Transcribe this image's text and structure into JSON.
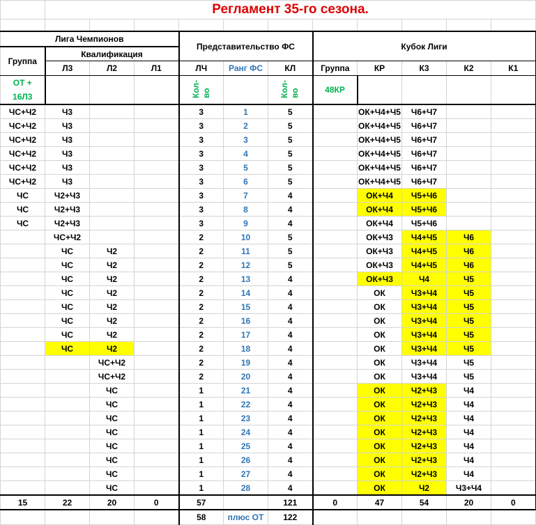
{
  "title": "Регламент 35-го сезона.",
  "headers": {
    "champions_league": "Лига Чемпионов",
    "group": "Группа",
    "qualification": "Квалификация",
    "l3": "Л3",
    "l2": "Л2",
    "l1": "Л1",
    "fs_representation": "Представительство ФС",
    "lch": "ЛЧ",
    "fs_rank": "Ранг ФС",
    "kl": "КЛ",
    "league_cup": "Кубок Лиги",
    "cup_group": "Группа",
    "kr": "КР",
    "k3": "К3",
    "k2": "К2",
    "k1": "К1",
    "group_note_1": "ОТ +",
    "group_note_2": "16Л3",
    "count_1": "Кол-",
    "count_2": "во",
    "cup_group_note": "48КР"
  },
  "colors": {
    "highlight": "#ffff00",
    "title": "#e00000",
    "rank": "#2e75b6",
    "note": "#00b050"
  },
  "rows": [
    {
      "cells": [
        "ЧС+Ч2",
        "Ч3",
        "",
        "",
        "3",
        "1",
        "5",
        "",
        "ОК+Ч4+Ч5",
        "Ч6+Ч7",
        "",
        ""
      ],
      "hl": []
    },
    {
      "cells": [
        "ЧС+Ч2",
        "Ч3",
        "",
        "",
        "3",
        "2",
        "5",
        "",
        "ОК+Ч4+Ч5",
        "Ч6+Ч7",
        "",
        ""
      ],
      "hl": []
    },
    {
      "cells": [
        "ЧС+Ч2",
        "Ч3",
        "",
        "",
        "3",
        "3",
        "5",
        "",
        "ОК+Ч4+Ч5",
        "Ч6+Ч7",
        "",
        ""
      ],
      "hl": []
    },
    {
      "cells": [
        "ЧС+Ч2",
        "Ч3",
        "",
        "",
        "3",
        "4",
        "5",
        "",
        "ОК+Ч4+Ч5",
        "Ч6+Ч7",
        "",
        ""
      ],
      "hl": []
    },
    {
      "cells": [
        "ЧС+Ч2",
        "Ч3",
        "",
        "",
        "3",
        "5",
        "5",
        "",
        "ОК+Ч4+Ч5",
        "Ч6+Ч7",
        "",
        ""
      ],
      "hl": []
    },
    {
      "cells": [
        "ЧС+Ч2",
        "Ч3",
        "",
        "",
        "3",
        "6",
        "5",
        "",
        "ОК+Ч4+Ч5",
        "Ч6+Ч7",
        "",
        ""
      ],
      "hl": []
    },
    {
      "cells": [
        "ЧС",
        "Ч2+Ч3",
        "",
        "",
        "3",
        "7",
        "4",
        "",
        "ОК+Ч4",
        "Ч5+Ч6",
        "",
        ""
      ],
      "hl": [
        8,
        9
      ]
    },
    {
      "cells": [
        "ЧС",
        "Ч2+Ч3",
        "",
        "",
        "3",
        "8",
        "4",
        "",
        "ОК+Ч4",
        "Ч5+Ч6",
        "",
        ""
      ],
      "hl": [
        8,
        9
      ]
    },
    {
      "cells": [
        "ЧС",
        "Ч2+Ч3",
        "",
        "",
        "3",
        "9",
        "4",
        "",
        "ОК+Ч4",
        "Ч5+Ч6",
        "",
        ""
      ],
      "hl": []
    },
    {
      "cells": [
        "",
        "ЧС+Ч2",
        "",
        "",
        "2",
        "10",
        "5",
        "",
        "ОК+Ч3",
        "Ч4+Ч5",
        "Ч6",
        ""
      ],
      "hl": [
        9,
        10
      ]
    },
    {
      "cells": [
        "",
        "ЧС",
        "Ч2",
        "",
        "2",
        "11",
        "5",
        "",
        "ОК+Ч3",
        "Ч4+Ч5",
        "Ч6",
        ""
      ],
      "hl": [
        9,
        10
      ]
    },
    {
      "cells": [
        "",
        "ЧС",
        "Ч2",
        "",
        "2",
        "12",
        "5",
        "",
        "ОК+Ч3",
        "Ч4+Ч5",
        "Ч6",
        ""
      ],
      "hl": [
        9,
        10
      ]
    },
    {
      "cells": [
        "",
        "ЧС",
        "Ч2",
        "",
        "2",
        "13",
        "4",
        "",
        "ОК+Ч3",
        "Ч4",
        "Ч5",
        ""
      ],
      "hl": [
        8,
        9,
        10
      ]
    },
    {
      "cells": [
        "",
        "ЧС",
        "Ч2",
        "",
        "2",
        "14",
        "4",
        "",
        "ОК",
        "Ч3+Ч4",
        "Ч5",
        ""
      ],
      "hl": [
        9,
        10
      ]
    },
    {
      "cells": [
        "",
        "ЧС",
        "Ч2",
        "",
        "2",
        "15",
        "4",
        "",
        "ОК",
        "Ч3+Ч4",
        "Ч5",
        ""
      ],
      "hl": [
        9,
        10
      ]
    },
    {
      "cells": [
        "",
        "ЧС",
        "Ч2",
        "",
        "2",
        "16",
        "4",
        "",
        "ОК",
        "Ч3+Ч4",
        "Ч5",
        ""
      ],
      "hl": [
        9,
        10
      ]
    },
    {
      "cells": [
        "",
        "ЧС",
        "Ч2",
        "",
        "2",
        "17",
        "4",
        "",
        "ОК",
        "Ч3+Ч4",
        "Ч5",
        ""
      ],
      "hl": [
        9,
        10
      ]
    },
    {
      "cells": [
        "",
        "ЧС",
        "Ч2",
        "",
        "2",
        "18",
        "4",
        "",
        "ОК",
        "Ч3+Ч4",
        "Ч5",
        ""
      ],
      "hl": [
        1,
        2,
        9,
        10
      ]
    },
    {
      "cells": [
        "",
        "",
        "ЧС+Ч2",
        "",
        "2",
        "19",
        "4",
        "",
        "ОК",
        "Ч3+Ч4",
        "Ч5",
        ""
      ],
      "hl": []
    },
    {
      "cells": [
        "",
        "",
        "ЧС+Ч2",
        "",
        "2",
        "20",
        "4",
        "",
        "ОК",
        "Ч3+Ч4",
        "Ч5",
        ""
      ],
      "hl": []
    },
    {
      "cells": [
        "",
        "",
        "ЧС",
        "",
        "1",
        "21",
        "4",
        "",
        "ОК",
        "Ч2+Ч3",
        "Ч4",
        ""
      ],
      "hl": [
        8,
        9
      ]
    },
    {
      "cells": [
        "",
        "",
        "ЧС",
        "",
        "1",
        "22",
        "4",
        "",
        "ОК",
        "Ч2+Ч3",
        "Ч4",
        ""
      ],
      "hl": [
        8,
        9
      ]
    },
    {
      "cells": [
        "",
        "",
        "ЧС",
        "",
        "1",
        "23",
        "4",
        "",
        "ОК",
        "Ч2+Ч3",
        "Ч4",
        ""
      ],
      "hl": [
        8,
        9
      ]
    },
    {
      "cells": [
        "",
        "",
        "ЧС",
        "",
        "1",
        "24",
        "4",
        "",
        "ОК",
        "Ч2+Ч3",
        "Ч4",
        ""
      ],
      "hl": [
        8,
        9
      ]
    },
    {
      "cells": [
        "",
        "",
        "ЧС",
        "",
        "1",
        "25",
        "4",
        "",
        "ОК",
        "Ч2+Ч3",
        "Ч4",
        ""
      ],
      "hl": [
        8,
        9
      ]
    },
    {
      "cells": [
        "",
        "",
        "ЧС",
        "",
        "1",
        "26",
        "4",
        "",
        "ОК",
        "Ч2+Ч3",
        "Ч4",
        ""
      ],
      "hl": [
        8,
        9
      ]
    },
    {
      "cells": [
        "",
        "",
        "ЧС",
        "",
        "1",
        "27",
        "4",
        "",
        "ОК",
        "Ч2+Ч3",
        "Ч4",
        ""
      ],
      "hl": [
        8,
        9
      ]
    },
    {
      "cells": [
        "",
        "",
        "ЧС",
        "",
        "1",
        "28",
        "4",
        "",
        "ОК",
        "Ч2",
        "Ч3+Ч4",
        ""
      ],
      "hl": [
        8,
        9
      ]
    }
  ],
  "totals": [
    "15",
    "22",
    "20",
    "0",
    "57",
    "",
    "121",
    "0",
    "47",
    "54",
    "20",
    "0"
  ],
  "extra": [
    "",
    "",
    "",
    "",
    "58",
    "плюс ОТ",
    "122",
    "",
    "",
    "",
    "",
    ""
  ]
}
